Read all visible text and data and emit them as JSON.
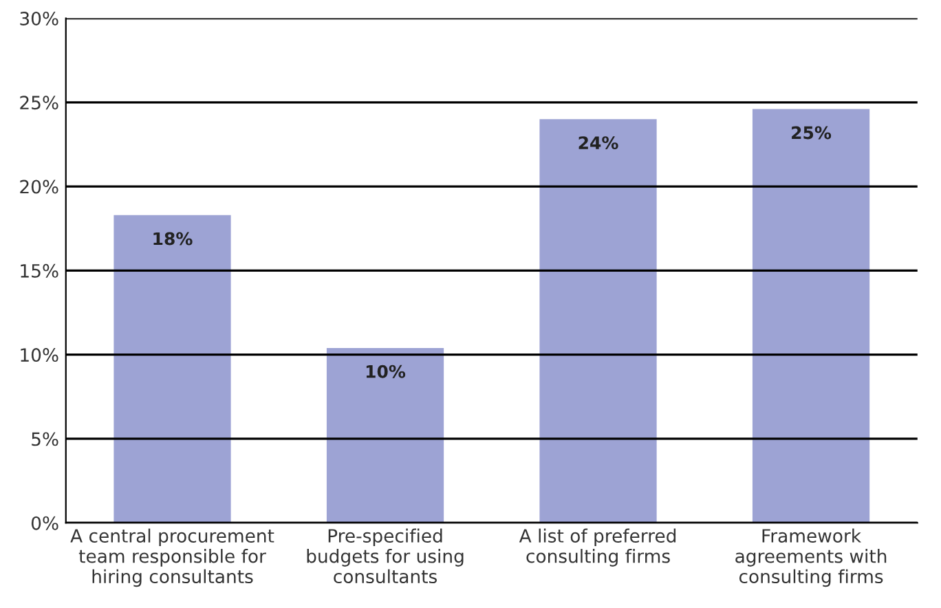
{
  "chart_data": {
    "type": "bar",
    "categories": [
      "A central procurement\nteam responsible for\nhiring consultants",
      "Pre-specified\nbudgets for using\nconsultants",
      "A list of preferred\nconsulting firms",
      "Framework\nagreements with\nconsulting firms"
    ],
    "values": [
      18.3,
      10.4,
      24.0,
      24.6
    ],
    "value_labels": [
      "18%",
      "10%",
      "24%",
      "25%"
    ],
    "color": "#9da3d4",
    "ylim": [
      0,
      30
    ],
    "yticks": [
      {
        "value": 0,
        "label": "0%"
      },
      {
        "value": 5,
        "label": "5%"
      },
      {
        "value": 10,
        "label": "10%"
      },
      {
        "value": 15,
        "label": "15%"
      },
      {
        "value": 20,
        "label": "20%"
      },
      {
        "value": 25,
        "label": "25%"
      },
      {
        "value": 30,
        "label": "30%"
      }
    ],
    "grid": "y",
    "legend": false
  }
}
